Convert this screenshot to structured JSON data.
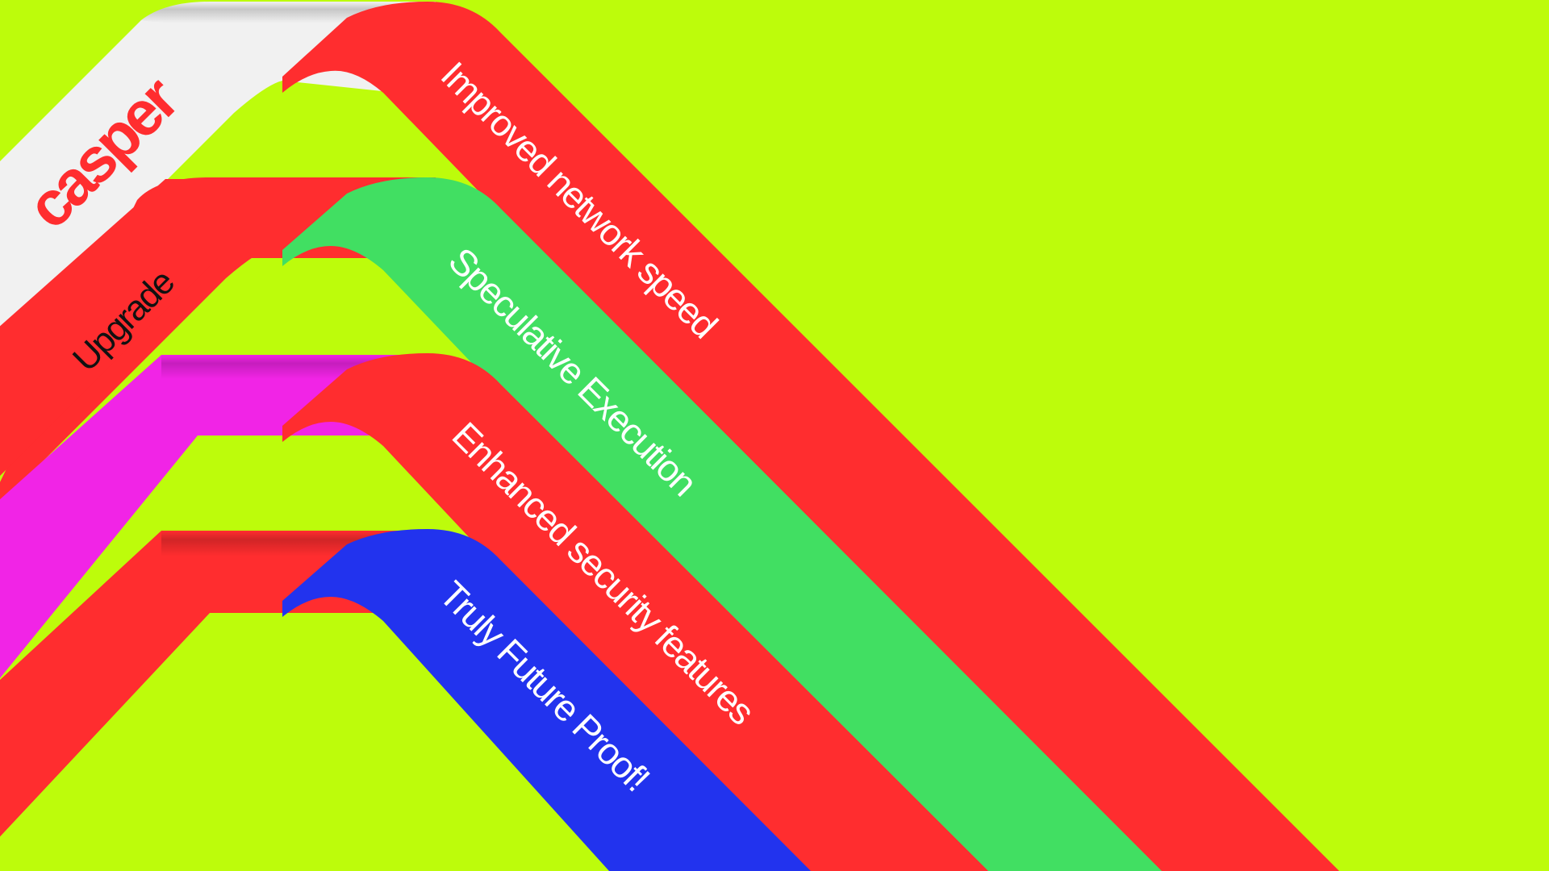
{
  "colors": {
    "background": "#bdfc0b",
    "white": "#f1f1f1",
    "red": "#ff2d2f",
    "green": "#41df62",
    "magenta": "#f124e6",
    "blue": "#2233ee",
    "text_light": "#ffffff",
    "text_dark": "#111111"
  },
  "logo": {
    "text": "casper"
  },
  "ribbons": [
    {
      "label": "Upgrade",
      "color": "#ff2d2f"
    },
    {
      "label": "Improved network speed",
      "color": "#ff2d2f"
    },
    {
      "label": "Speculative Execution",
      "color": "#41df62"
    },
    {
      "label": "Enhanced security features",
      "color": "#ff2d2f"
    },
    {
      "label": "Truly Future Proof!",
      "color": "#2233ee"
    }
  ]
}
